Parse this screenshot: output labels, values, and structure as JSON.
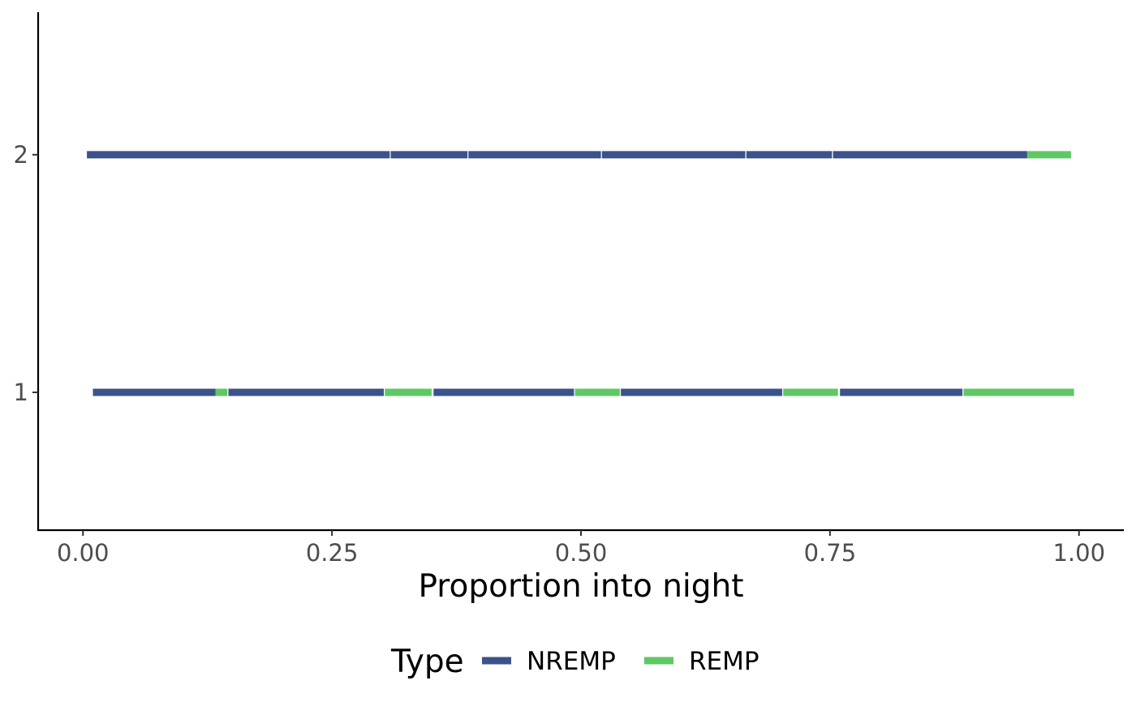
{
  "chart_data": {
    "type": "segment",
    "xlabel": "Proportion into night",
    "ylabel": "",
    "xlim": [
      -0.045,
      1.045
    ],
    "ylim": [
      0.42,
      2.6
    ],
    "x_ticks": [
      0,
      0.25,
      0.5,
      0.75,
      1
    ],
    "x_tick_labels": [
      "0.00",
      "0.25",
      "0.50",
      "0.75",
      "1.00"
    ],
    "y_ticks": [
      1,
      2
    ],
    "y_tick_labels": [
      "1",
      "2"
    ],
    "grid": false,
    "legend": {
      "title": "Type",
      "position": "bottom",
      "items": [
        {
          "label": "NREMP",
          "color": "#3b528b"
        },
        {
          "label": "REMP",
          "color": "#5ec962"
        }
      ]
    },
    "series": [
      {
        "name": "NREMP",
        "color": "#3b528b",
        "segments": [
          {
            "y": 2,
            "x_start": 0.004,
            "x_end": 0.308
          },
          {
            "y": 2,
            "x_start": 0.309,
            "x_end": 0.386
          },
          {
            "y": 2,
            "x_start": 0.387,
            "x_end": 0.52
          },
          {
            "y": 2,
            "x_start": 0.521,
            "x_end": 0.665
          },
          {
            "y": 2,
            "x_start": 0.666,
            "x_end": 0.752
          },
          {
            "y": 2,
            "x_start": 0.753,
            "x_end": 0.948
          },
          {
            "y": 1,
            "x_start": 0.01,
            "x_end": 0.133
          },
          {
            "y": 1,
            "x_start": 0.146,
            "x_end": 0.302
          },
          {
            "y": 1,
            "x_start": 0.352,
            "x_end": 0.493
          },
          {
            "y": 1,
            "x_start": 0.54,
            "x_end": 0.702
          },
          {
            "y": 1,
            "x_start": 0.76,
            "x_end": 0.883
          }
        ]
      },
      {
        "name": "REMP",
        "color": "#5ec962",
        "segments": [
          {
            "y": 2,
            "x_start": 0.948,
            "x_end": 0.992
          },
          {
            "y": 1,
            "x_start": 0.133,
            "x_end": 0.145
          },
          {
            "y": 1,
            "x_start": 0.303,
            "x_end": 0.35
          },
          {
            "y": 1,
            "x_start": 0.494,
            "x_end": 0.539
          },
          {
            "y": 1,
            "x_start": 0.703,
            "x_end": 0.758
          },
          {
            "y": 1,
            "x_start": 0.884,
            "x_end": 0.995
          }
        ]
      }
    ]
  }
}
